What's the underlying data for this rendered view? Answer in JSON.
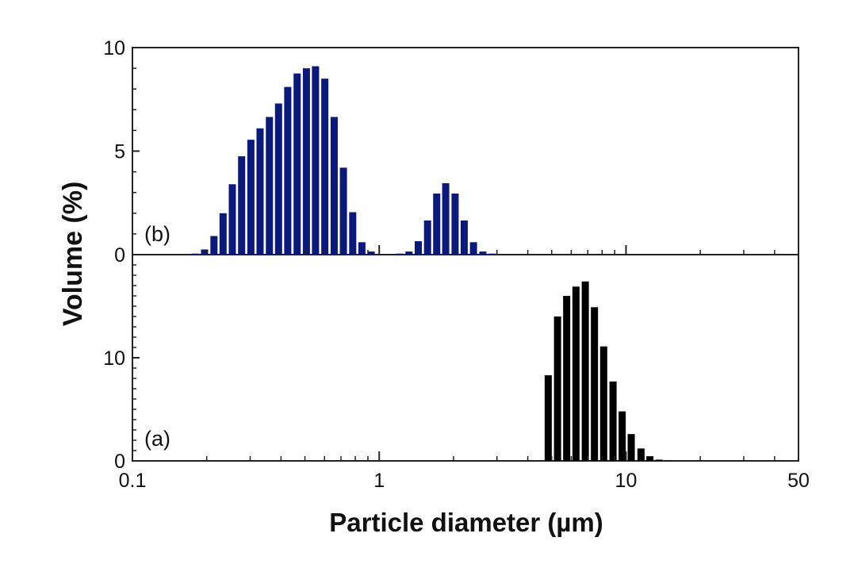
{
  "chart_data": {
    "type": "bar",
    "xlabel": "Particle diameter (µm)",
    "ylabel": "Volume (%)",
    "x_scale": "log",
    "xlim": [
      0.1,
      50
    ],
    "x_ticks": [
      {
        "value": 0.1,
        "label": "0.1"
      },
      {
        "value": 1,
        "label": "1"
      },
      {
        "value": 10,
        "label": "10"
      },
      {
        "value": 50,
        "label": "50"
      }
    ],
    "panels": [
      {
        "label": "(b)",
        "color": "#0b1a7a",
        "ylim": [
          0,
          10
        ],
        "y_ticks": [
          {
            "value": 0,
            "label": "0"
          },
          {
            "value": 5,
            "label": "5"
          },
          {
            "value": 10,
            "label": "10"
          }
        ],
        "bars": [
          {
            "x": 0.18,
            "y": 0.05
          },
          {
            "x": 0.196,
            "y": 0.25
          },
          {
            "x": 0.214,
            "y": 0.9
          },
          {
            "x": 0.233,
            "y": 2.0
          },
          {
            "x": 0.254,
            "y": 3.4
          },
          {
            "x": 0.277,
            "y": 4.75
          },
          {
            "x": 0.302,
            "y": 5.55
          },
          {
            "x": 0.329,
            "y": 6.1
          },
          {
            "x": 0.359,
            "y": 6.65
          },
          {
            "x": 0.391,
            "y": 7.3
          },
          {
            "x": 0.426,
            "y": 8.1
          },
          {
            "x": 0.465,
            "y": 8.75
          },
          {
            "x": 0.507,
            "y": 9.0
          },
          {
            "x": 0.552,
            "y": 9.1
          },
          {
            "x": 0.602,
            "y": 8.5
          },
          {
            "x": 0.657,
            "y": 6.65
          },
          {
            "x": 0.716,
            "y": 4.2
          },
          {
            "x": 0.781,
            "y": 2.05
          },
          {
            "x": 0.851,
            "y": 0.6
          },
          {
            "x": 0.928,
            "y": 0.15
          },
          {
            "x": 1.21,
            "y": 0.05
          },
          {
            "x": 1.32,
            "y": 0.15
          },
          {
            "x": 1.44,
            "y": 0.65
          },
          {
            "x": 1.57,
            "y": 1.65
          },
          {
            "x": 1.71,
            "y": 2.95
          },
          {
            "x": 1.86,
            "y": 3.45
          },
          {
            "x": 2.03,
            "y": 2.95
          },
          {
            "x": 2.21,
            "y": 1.65
          },
          {
            "x": 2.41,
            "y": 0.6
          },
          {
            "x": 2.63,
            "y": 0.15
          },
          {
            "x": 2.87,
            "y": 0.05
          }
        ]
      },
      {
        "label": "(a)",
        "color": "#000000",
        "ylim": [
          0,
          20
        ],
        "y_ticks": [
          {
            "value": 0,
            "label": "0"
          },
          {
            "value": 10,
            "label": "10"
          }
        ],
        "bars": [
          {
            "x": 4.84,
            "y": 8.3
          },
          {
            "x": 5.28,
            "y": 14.0
          },
          {
            "x": 5.75,
            "y": 16.0
          },
          {
            "x": 6.27,
            "y": 16.9
          },
          {
            "x": 6.84,
            "y": 17.4
          },
          {
            "x": 7.45,
            "y": 14.9
          },
          {
            "x": 8.12,
            "y": 11.1
          },
          {
            "x": 8.86,
            "y": 7.7
          },
          {
            "x": 9.65,
            "y": 4.8
          },
          {
            "x": 10.5,
            "y": 2.6
          },
          {
            "x": 11.5,
            "y": 1.2
          },
          {
            "x": 12.5,
            "y": 0.45
          },
          {
            "x": 13.6,
            "y": 0.12
          },
          {
            "x": 14.9,
            "y": 0.03
          }
        ]
      }
    ]
  }
}
